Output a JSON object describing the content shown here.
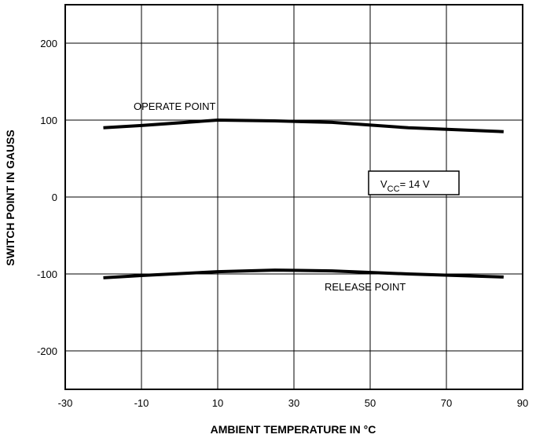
{
  "chart_data": {
    "type": "line",
    "title": "",
    "xlabel": "AMBIENT TEMPERATURE IN °C",
    "ylabel": "SWITCH POINT IN GAUSS",
    "xlim": [
      -30,
      90
    ],
    "ylim": [
      -250,
      250
    ],
    "xticks": [
      -30,
      -10,
      10,
      30,
      50,
      70,
      90
    ],
    "yticks": [
      -200,
      -100,
      0,
      100,
      200
    ],
    "grid": true,
    "series": [
      {
        "name": "OPERATE POINT",
        "x": [
          -20,
          -10,
          10,
          25,
          40,
          60,
          85
        ],
        "y": [
          90,
          93,
          100,
          99,
          97,
          90,
          85
        ]
      },
      {
        "name": "RELEASE POINT",
        "x": [
          -20,
          -10,
          10,
          25,
          40,
          60,
          85
        ],
        "y": [
          -105,
          -102,
          -97,
          -95,
          -96,
          -100,
          -104
        ]
      }
    ],
    "annotations": {
      "vcc_prefix": "V",
      "vcc_subscript": "CC",
      "vcc_suffix": "= 14 V"
    },
    "colors": {
      "line": "#000000",
      "grid": "#000000"
    }
  }
}
